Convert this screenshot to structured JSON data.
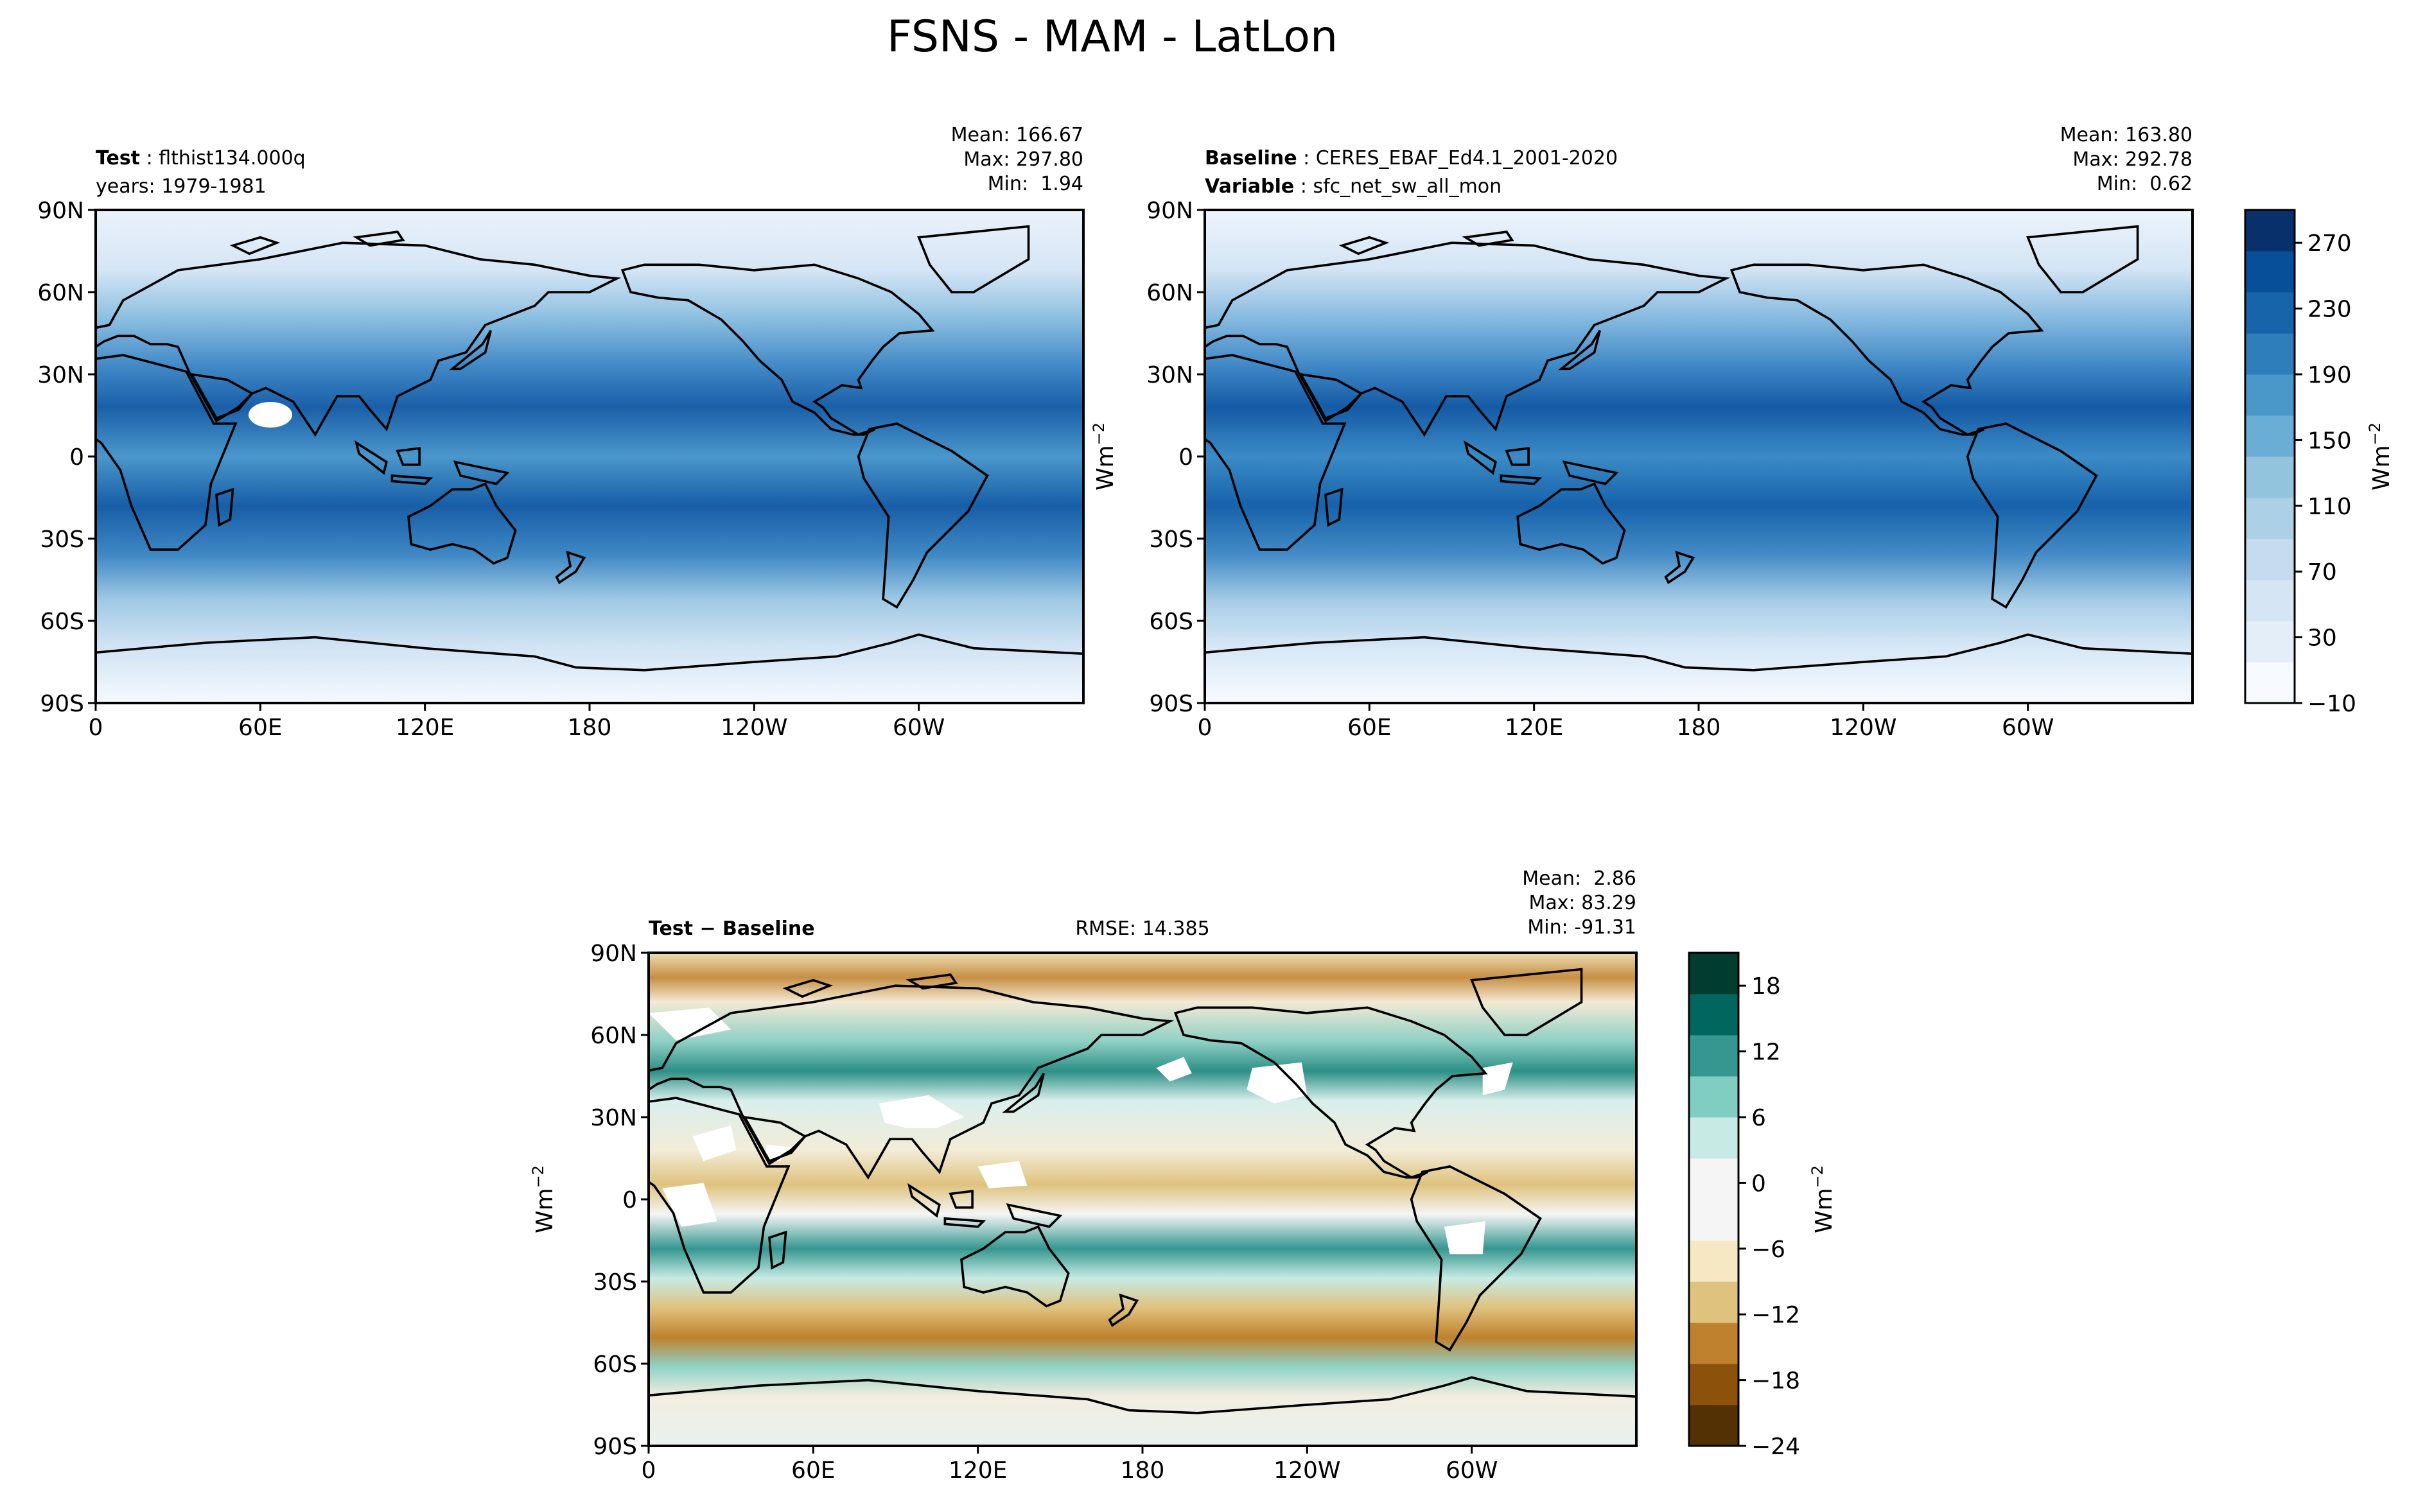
{
  "figure": {
    "title": "FSNS - MAM - LatLon"
  },
  "axes_common": {
    "lat_ticks": [
      "90N",
      "60N",
      "30N",
      "0",
      "30S",
      "60S",
      "90S"
    ],
    "lon_ticks": [
      "0",
      "60E",
      "120E",
      "180",
      "120W",
      "60W"
    ],
    "units_label": "Wm",
    "units_exp": "−2"
  },
  "panels": {
    "test": {
      "header_bold": "Test",
      "header_name": "flthist134.000q",
      "header_line2": "years: 1979-1981",
      "stats": [
        "Mean: 166.67",
        "Max: 297.80",
        "Min:  1.94"
      ]
    },
    "baseline": {
      "header_bold": "Baseline",
      "header_name": "CERES_EBAF_Ed4.1_2001-2020",
      "header_bold2": "Variable",
      "header_name2": "sfc_net_sw_all_mon",
      "stats": [
        "Mean: 163.80",
        "Max: 292.78",
        "Min:  0.62"
      ]
    },
    "diff": {
      "header_bold": "Test − Baseline",
      "rmse": "RMSE: 14.385",
      "stats": [
        "Mean:  2.86",
        "Max: 83.29",
        "Min: -91.31"
      ]
    }
  },
  "colorbars": {
    "main": {
      "tick_labels": [
        "270",
        "230",
        "190",
        "150",
        "110",
        "70",
        "30",
        "−10"
      ],
      "colors": [
        "#f7fbff",
        "#e3eef9",
        "#d5e5f4",
        "#c6dbef",
        "#acd0e6",
        "#92c4de",
        "#6aaed6",
        "#4a98c9",
        "#2e7ebc",
        "#1764ab",
        "#084f99",
        "#08306b"
      ]
    },
    "diff": {
      "tick_labels": [
        "18",
        "12",
        "6",
        "0",
        "−6",
        "−12",
        "−18",
        "−24"
      ],
      "colors": [
        "#543005",
        "#8c510a",
        "#bf812d",
        "#dfc27d",
        "#f6e8c3",
        "#f5f5f5",
        "#f5f5f5",
        "#c7eae5",
        "#80cdc1",
        "#35978f",
        "#01665e",
        "#003c30"
      ]
    }
  },
  "chart_data": [
    {
      "type": "heatmap",
      "title": "Test: flthist134.000q",
      "x_ticks": [
        "0",
        "60E",
        "120E",
        "180",
        "120W",
        "60W"
      ],
      "y_ticks": [
        "90N",
        "60N",
        "30N",
        "0",
        "30S",
        "60S",
        "90S"
      ],
      "mean": 166.67,
      "max": 297.8,
      "min": 1.94,
      "colorbar_range": [
        -10,
        290
      ]
    },
    {
      "type": "heatmap",
      "title": "Baseline: CERES_EBAF_Ed4.1_2001-2020",
      "x_ticks": [
        "0",
        "60E",
        "120E",
        "180",
        "120W",
        "60W"
      ],
      "y_ticks": [
        "90N",
        "60N",
        "30N",
        "0",
        "30S",
        "60S",
        "90S"
      ],
      "mean": 163.8,
      "max": 292.78,
      "min": 0.62,
      "colorbar_range": [
        -10,
        290
      ]
    },
    {
      "type": "heatmap",
      "title": "Test − Baseline",
      "x_ticks": [
        "0",
        "60E",
        "120E",
        "180",
        "120W",
        "60W"
      ],
      "y_ticks": [
        "90N",
        "60N",
        "30N",
        "0",
        "30S",
        "60S",
        "90S"
      ],
      "mean": 2.86,
      "max": 83.29,
      "min": -91.31,
      "rmse": 14.385,
      "colorbar_range": [
        -24,
        21
      ]
    }
  ]
}
